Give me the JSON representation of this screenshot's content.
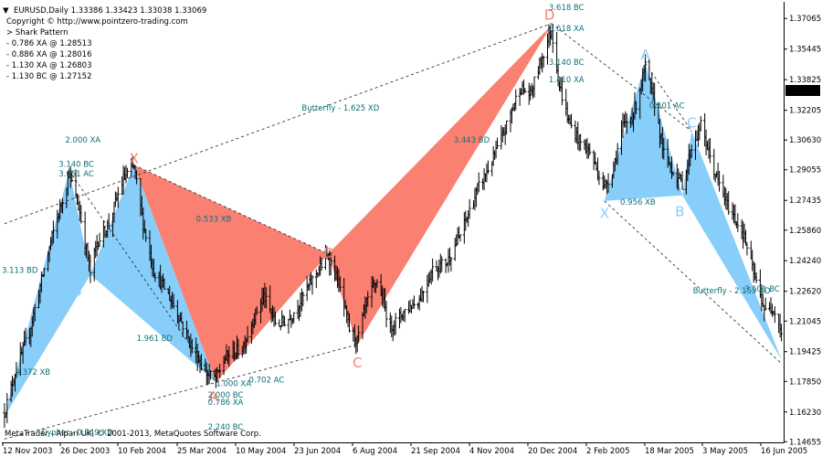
{
  "header": {
    "symbol_line": "EURUSD,Daily  1.33386 1.33423 1.33038 1.33069",
    "lines": [
      "Copyright © http://www.pointzero-trading.com",
      "> Shark Pattern",
      "- 0.786 XA @ 1.28513",
      "- 0.886 XA @ 1.28016",
      "- 1.130 XA @ 1.26803",
      "- 1.130 BC @ 1.27152"
    ]
  },
  "footer": "MetaTrader - Alpari UK, © 2001-2013, MetaQuotes Software Corp.",
  "colors": {
    "bearish_fill": "#fa8072",
    "bullish_fill": "#87cefa",
    "bars": "#000000",
    "annotation": "#0d6f78",
    "price_badge_bg": "#000000",
    "price_badge_text": "#ffffff"
  },
  "chart_data": {
    "type": "ohlc",
    "symbol": "EURUSD",
    "timeframe": "Daily",
    "last_price": "1.33069",
    "ylim": [
      1.1467,
      1.3785
    ],
    "y_ticks": [
      "1.37065",
      "1.35445",
      "1.33825",
      "1.32205",
      "1.30630",
      "1.29055",
      "1.27435",
      "1.25860",
      "1.24240",
      "1.22620",
      "1.21045",
      "1.19425",
      "1.17850",
      "1.16230",
      "1.14655"
    ],
    "x_ticks": [
      "12 Nov 2003",
      "26 Dec 2003",
      "10 Feb 2004",
      "25 Mar 2004",
      "10 May 2004",
      "23 Jun 2004",
      "6 Aug 2004",
      "21 Sep 2004",
      "4 Nov 2004",
      "20 Dec 2004",
      "2 Feb 2005",
      "18 Mar 2005",
      "3 May 2005",
      "16 Jun 2005"
    ],
    "series": [
      {
        "values": [
          {
            "d": "2003-11-12",
            "p": 1.162
          },
          {
            "d": "2003-11-20",
            "p": 1.183
          },
          {
            "d": "2003-12-01",
            "p": 1.205
          },
          {
            "d": "2003-12-10",
            "p": 1.232
          },
          {
            "d": "2003-12-18",
            "p": 1.255
          },
          {
            "d": "2003-12-26",
            "p": 1.275
          },
          {
            "d": "2003-12-31",
            "p": 1.289
          },
          {
            "d": "2004-01-08",
            "p": 1.268
          },
          {
            "d": "2004-01-16",
            "p": 1.236
          },
          {
            "d": "2004-01-21",
            "p": 1.252
          },
          {
            "d": "2004-01-30",
            "p": 1.262
          },
          {
            "d": "2004-02-10",
            "p": 1.286
          },
          {
            "d": "2004-02-18",
            "p": 1.292
          },
          {
            "d": "2004-02-25",
            "p": 1.262
          },
          {
            "d": "2004-03-04",
            "p": 1.237
          },
          {
            "d": "2004-03-12",
            "p": 1.228
          },
          {
            "d": "2004-03-22",
            "p": 1.215
          },
          {
            "d": "2004-04-01",
            "p": 1.198
          },
          {
            "d": "2004-04-12",
            "p": 1.183
          },
          {
            "d": "2004-04-20",
            "p": 1.18
          },
          {
            "d": "2004-04-28",
            "p": 1.192
          },
          {
            "d": "2004-05-10",
            "p": 1.196
          },
          {
            "d": "2004-05-18",
            "p": 1.211
          },
          {
            "d": "2004-05-26",
            "p": 1.224
          },
          {
            "d": "2004-06-05",
            "p": 1.208
          },
          {
            "d": "2004-06-15",
            "p": 1.212
          },
          {
            "d": "2004-06-23",
            "p": 1.221
          },
          {
            "d": "2004-07-05",
            "p": 1.236
          },
          {
            "d": "2004-07-14",
            "p": 1.245
          },
          {
            "d": "2004-07-22",
            "p": 1.23
          },
          {
            "d": "2004-07-30",
            "p": 1.206
          },
          {
            "d": "2004-08-05",
            "p": 1.2
          },
          {
            "d": "2004-08-12",
            "p": 1.22
          },
          {
            "d": "2004-08-20",
            "p": 1.232
          },
          {
            "d": "2004-08-30",
            "p": 1.207
          },
          {
            "d": "2004-09-10",
            "p": 1.216
          },
          {
            "d": "2004-09-21",
            "p": 1.222
          },
          {
            "d": "2004-10-01",
            "p": 1.238
          },
          {
            "d": "2004-10-12",
            "p": 1.242
          },
          {
            "d": "2004-10-22",
            "p": 1.256
          },
          {
            "d": "2004-11-04",
            "p": 1.28
          },
          {
            "d": "2004-11-15",
            "p": 1.295
          },
          {
            "d": "2004-11-25",
            "p": 1.312
          },
          {
            "d": "2004-12-06",
            "p": 1.334
          },
          {
            "d": "2004-12-14",
            "p": 1.33
          },
          {
            "d": "2004-12-20",
            "p": 1.344
          },
          {
            "d": "2004-12-30",
            "p": 1.365
          },
          {
            "d": "2005-01-05",
            "p": 1.335
          },
          {
            "d": "2005-01-12",
            "p": 1.316
          },
          {
            "d": "2005-01-20",
            "p": 1.306
          },
          {
            "d": "2005-01-28",
            "p": 1.3
          },
          {
            "d": "2005-02-08",
            "p": 1.281
          },
          {
            "d": "2005-02-14",
            "p": 1.29
          },
          {
            "d": "2005-02-22",
            "p": 1.313
          },
          {
            "d": "2005-03-02",
            "p": 1.32
          },
          {
            "d": "2005-03-11",
            "p": 1.345
          },
          {
            "d": "2005-03-18",
            "p": 1.326
          },
          {
            "d": "2005-03-25",
            "p": 1.299
          },
          {
            "d": "2005-04-01",
            "p": 1.29
          },
          {
            "d": "2005-04-08",
            "p": 1.283
          },
          {
            "d": "2005-04-15",
            "p": 1.302
          },
          {
            "d": "2005-04-22",
            "p": 1.314
          },
          {
            "d": "2005-05-03",
            "p": 1.288
          },
          {
            "d": "2005-05-12",
            "p": 1.272
          },
          {
            "d": "2005-05-24",
            "p": 1.257
          },
          {
            "d": "2005-06-02",
            "p": 1.233
          },
          {
            "d": "2005-06-10",
            "p": 1.215
          },
          {
            "d": "2005-06-16",
            "p": 1.218
          },
          {
            "d": "2005-06-22",
            "p": 1.205
          }
        ]
      }
    ],
    "patterns": [
      {
        "fill": "bearish",
        "legs": [
          [
            "2003-11-12",
            1.16
          ],
          [
            "2003-12-31",
            1.29
          ],
          [
            "2004-01-16",
            1.235
          ]
        ]
      },
      {
        "fill": "bullish",
        "legs": [
          [
            "2003-11-12",
            1.16
          ],
          [
            "2003-12-31",
            1.29
          ],
          [
            "2004-01-16",
            1.235
          ]
        ]
      },
      {
        "fill": "bullish",
        "legs": [
          [
            "2004-01-16",
            1.235
          ],
          [
            "2004-02-18",
            1.293
          ],
          [
            "2004-04-20",
            1.178
          ]
        ]
      },
      {
        "fill": "bearish",
        "legs": [
          [
            "2004-02-18",
            1.293
          ],
          [
            "2004-04-20",
            1.178
          ],
          [
            "2004-07-14",
            1.246
          ]
        ]
      },
      {
        "fill": "bearish",
        "legs": [
          [
            "2004-07-14",
            1.246
          ],
          [
            "2004-08-05",
            1.198
          ],
          [
            "2004-12-30",
            1.367
          ]
        ]
      },
      {
        "fill": "bullish",
        "legs": [
          [
            "2005-02-08",
            1.274
          ],
          [
            "2005-03-11",
            1.347
          ],
          [
            "2005-04-08",
            1.277
          ]
        ]
      },
      {
        "fill": "bullish",
        "legs": [
          [
            "2005-04-08",
            1.277
          ],
          [
            "2005-04-15",
            1.311
          ],
          [
            "2005-06-22",
            1.19
          ]
        ]
      }
    ],
    "dashed_lines": [
      [
        [
          "2003-11-12",
          1.262
        ],
        [
          "2004-12-30",
          1.368
        ]
      ],
      [
        [
          "2003-12-31",
          1.29
        ],
        [
          "2004-04-20",
          1.178
        ]
      ],
      [
        [
          "2004-02-18",
          1.293
        ],
        [
          "2004-07-14",
          1.246
        ]
      ],
      [
        [
          "2003-11-12",
          1.148
        ],
        [
          "2004-08-05",
          1.198
        ]
      ],
      [
        [
          "2004-12-30",
          1.368
        ],
        [
          "2005-04-15",
          1.311
        ]
      ],
      [
        [
          "2005-02-08",
          1.274
        ],
        [
          "2005-06-22",
          1.188
        ]
      ],
      [
        [
          "2005-03-11",
          1.347
        ],
        [
          "2005-04-15",
          1.311
        ]
      ]
    ],
    "point_labels": [
      {
        "text": "X",
        "d": "2004-02-18",
        "p": 1.294,
        "color": "bearish"
      },
      {
        "text": "B",
        "d": "2004-01-06",
        "p": 1.224,
        "color": "bullish"
      },
      {
        "text": "A",
        "d": "2004-04-18",
        "p": 1.168,
        "color": "bearish"
      },
      {
        "text": "D",
        "d": "2004-07-14",
        "p": 1.244,
        "color": "bearish"
      },
      {
        "text": "C",
        "d": "2004-08-05",
        "p": 1.186,
        "color": "bearish"
      },
      {
        "text": "D",
        "d": "2004-12-28",
        "p": 1.37,
        "color": "bearish"
      },
      {
        "text": "X",
        "d": "2005-02-08",
        "p": 1.265,
        "color": "bullish"
      },
      {
        "text": "A",
        "d": "2005-03-11",
        "p": 1.349,
        "color": "bullish"
      },
      {
        "text": "B",
        "d": "2005-04-06",
        "p": 1.266,
        "color": "bullish"
      },
      {
        "text": "C",
        "d": "2005-04-15",
        "p": 1.313,
        "color": "bullish"
      }
    ],
    "annotations": [
      {
        "text": "2.000 XA",
        "d": "2003-12-28",
        "p": 1.305
      },
      {
        "text": "3.140 BC",
        "d": "2003-12-23",
        "p": 1.292
      },
      {
        "text": "3.051 AC",
        "d": "2003-12-23",
        "p": 1.287
      },
      {
        "text": "3.113 BD",
        "d": "2003-11-10",
        "p": 1.236
      },
      {
        "text": "0.372 XB",
        "d": "2003-11-20",
        "p": 1.182
      },
      {
        "text": "0.533 XB",
        "d": "2004-04-05",
        "p": 1.263
      },
      {
        "text": "1.961 BD",
        "d": "2004-02-20",
        "p": 1.2
      },
      {
        "text": "1.000 XA",
        "d": "2004-04-20",
        "p": 1.176
      },
      {
        "text": "0.702 AC",
        "d": "2004-05-15",
        "p": 1.178
      },
      {
        "text": "2.000 BC",
        "d": "2004-04-14",
        "p": 1.17
      },
      {
        "text": "0.786 XA",
        "d": "2004-04-14",
        "p": 1.166
      },
      {
        "text": "2.240 BC",
        "d": "2004-04-14",
        "p": 1.153
      },
      {
        "text": "Cypher - 0.749 XD",
        "d": "2003-12-10",
        "p": 1.15
      },
      {
        "text": "Butterfly - 1.625 XD",
        "d": "2004-06-24",
        "p": 1.322
      },
      {
        "text": "3.443 BD",
        "d": "2004-10-17",
        "p": 1.305
      },
      {
        "text": "3.618 BC",
        "d": "2004-12-28",
        "p": 1.375
      },
      {
        "text": "3.618 XA",
        "d": "2004-12-28",
        "p": 1.364
      },
      {
        "text": "3.140 BC",
        "d": "2004-12-28",
        "p": 1.346
      },
      {
        "text": "1.410 XA",
        "d": "2004-12-28",
        "p": 1.337
      },
      {
        "text": "0.956 XB",
        "d": "2005-02-20",
        "p": 1.272
      },
      {
        "text": "0.501 AC",
        "d": "2005-03-14",
        "p": 1.323
      },
      {
        "text": "Butterfly - 2.155 XD",
        "d": "2005-04-16",
        "p": 1.225
      },
      {
        "text": "3.501 BC",
        "d": "2005-05-25",
        "p": 1.226
      }
    ]
  }
}
